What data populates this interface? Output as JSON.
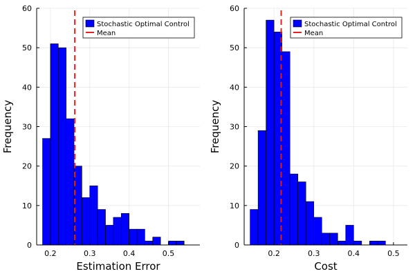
{
  "colors": {
    "bar": "#0000ff",
    "bar_edge": "#000000",
    "mean": "#e8201b",
    "grid": "#e8e8e8",
    "axis": "#000000"
  },
  "chart_data": [
    {
      "type": "bar",
      "subtype": "histogram",
      "xlabel": "Estimation Error",
      "ylabel": "Frequency",
      "xlim": [
        0.165,
        0.58
      ],
      "ylim": [
        0,
        60
      ],
      "xticks": [
        0.2,
        0.3,
        0.4,
        0.5
      ],
      "xtick_labels": [
        "0.2",
        "0.3",
        "0.4",
        "0.5"
      ],
      "yticks": [
        0,
        10,
        20,
        30,
        40,
        50,
        60
      ],
      "ytick_labels": [
        "0",
        "10",
        "20",
        "30",
        "40",
        "50",
        "60"
      ],
      "bin_width": 0.02,
      "bin_edges": [
        0.18,
        0.2,
        0.22,
        0.24,
        0.26,
        0.28,
        0.3,
        0.32,
        0.34,
        0.36,
        0.38,
        0.4,
        0.42,
        0.44,
        0.46,
        0.48,
        0.5,
        0.52,
        0.54
      ],
      "series": [
        {
          "name": "Stochastic Optimal Control",
          "values": [
            27,
            51,
            50,
            32,
            20,
            12,
            15,
            9,
            5,
            7,
            8,
            4,
            4,
            1,
            2,
            0,
            1,
            1
          ]
        }
      ],
      "mean": {
        "name": "Mean",
        "x": 0.262
      },
      "grid": true,
      "legend_position": "top-right"
    },
    {
      "type": "bar",
      "subtype": "histogram",
      "xlabel": "Cost",
      "ylabel": "Frequency",
      "xlim": [
        0.125,
        0.535
      ],
      "ylim": [
        0,
        60
      ],
      "xticks": [
        0.2,
        0.3,
        0.4,
        0.5
      ],
      "xtick_labels": [
        "0.2",
        "0.3",
        "0.4",
        "0.5"
      ],
      "yticks": [
        0,
        10,
        20,
        30,
        40,
        50,
        60
      ],
      "ytick_labels": [
        "0",
        "10",
        "20",
        "30",
        "40",
        "50",
        "60"
      ],
      "bin_width": 0.02,
      "bin_edges": [
        0.14,
        0.16,
        0.18,
        0.2,
        0.22,
        0.24,
        0.26,
        0.28,
        0.3,
        0.32,
        0.34,
        0.36,
        0.38,
        0.4,
        0.42,
        0.44,
        0.46,
        0.48,
        0.5,
        0.52
      ],
      "series": [
        {
          "name": "Stochastic Optimal Control",
          "values": [
            9,
            29,
            57,
            54,
            49,
            18,
            16,
            11,
            7,
            3,
            3,
            1,
            5,
            1,
            0,
            1,
            1,
            0,
            0
          ]
        }
      ],
      "mean": {
        "name": "Mean",
        "x": 0.218
      },
      "grid": true,
      "legend_position": "top-right"
    }
  ]
}
